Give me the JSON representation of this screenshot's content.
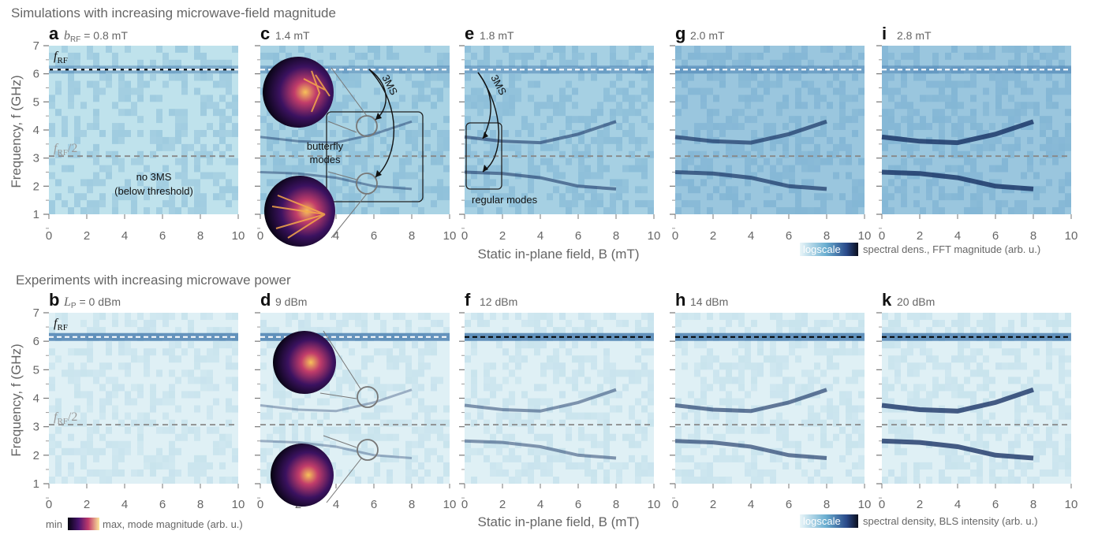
{
  "figure": {
    "row_top_title": "Simulations with increasing microwave-field magnitude",
    "row_bottom_title": "Experiments with increasing microwave power",
    "y_axis_label": "Frequency, f (GHz)",
    "x_axis_label": "Static in-plane field, B (mT)",
    "f_rf_label": "f",
    "f_rf_sub": "RF",
    "half_label_suffix": "/2",
    "colorbar_top": {
      "tag": "logscale",
      "text": "spectral dens., FFT magnitude (arb. u.)"
    },
    "colorbar_bottom": {
      "tag": "logscale",
      "text": "spectral density, BLS intensity (arb. u.)"
    },
    "colorbar_mode": {
      "min": "min",
      "text": "max, mode magnitude (arb. u.)"
    }
  },
  "panels_top": [
    {
      "letter": "a",
      "prefix": "b",
      "prefix_sub": "RF",
      "value": " = 0.8 mT"
    },
    {
      "letter": "c",
      "prefix": "",
      "prefix_sub": "",
      "value": "1.4 mT"
    },
    {
      "letter": "e",
      "prefix": "",
      "prefix_sub": "",
      "value": "1.8 mT"
    },
    {
      "letter": "g",
      "prefix": "",
      "prefix_sub": "",
      "value": "2.0 mT"
    },
    {
      "letter": "i",
      "prefix": "",
      "prefix_sub": "",
      "value": "2.8 mT"
    }
  ],
  "panels_bottom": [
    {
      "letter": "b",
      "prefix": "L",
      "prefix_sub": "P",
      "value": " = 0 dBm"
    },
    {
      "letter": "d",
      "prefix": "",
      "prefix_sub": "",
      "value": "9 dBm"
    },
    {
      "letter": "f",
      "prefix": "",
      "prefix_sub": "",
      "value": "12 dBm"
    },
    {
      "letter": "h",
      "prefix": "",
      "prefix_sub": "",
      "value": "14 dBm"
    },
    {
      "letter": "k",
      "prefix": "",
      "prefix_sub": "",
      "value": "20 dBm"
    }
  ],
  "annotations": {
    "no3ms_line1": "no 3MS",
    "no3ms_line2": "(below threshold)",
    "butterfly_line1": "butterfly",
    "butterfly_line2": "modes",
    "regular": "regular modes",
    "threems": "3MS"
  },
  "chart_data": {
    "type": "heatmap",
    "x_ticks": [
      0,
      2,
      4,
      6,
      8,
      10
    ],
    "xlim": [
      0,
      10
    ],
    "y_ticks": [
      1,
      2,
      3,
      4,
      5,
      6,
      7
    ],
    "ylim": [
      1,
      7
    ],
    "f_rf_ghz": 6.15,
    "f_rf_half_ghz": 3.07,
    "colors": {
      "low": "#e6f4f8",
      "mid": "#5b9ec6",
      "high": "#1a2850",
      "dash_white": "#ffffff",
      "dash_black": "#000000",
      "dash_gray": "#888888"
    }
  }
}
